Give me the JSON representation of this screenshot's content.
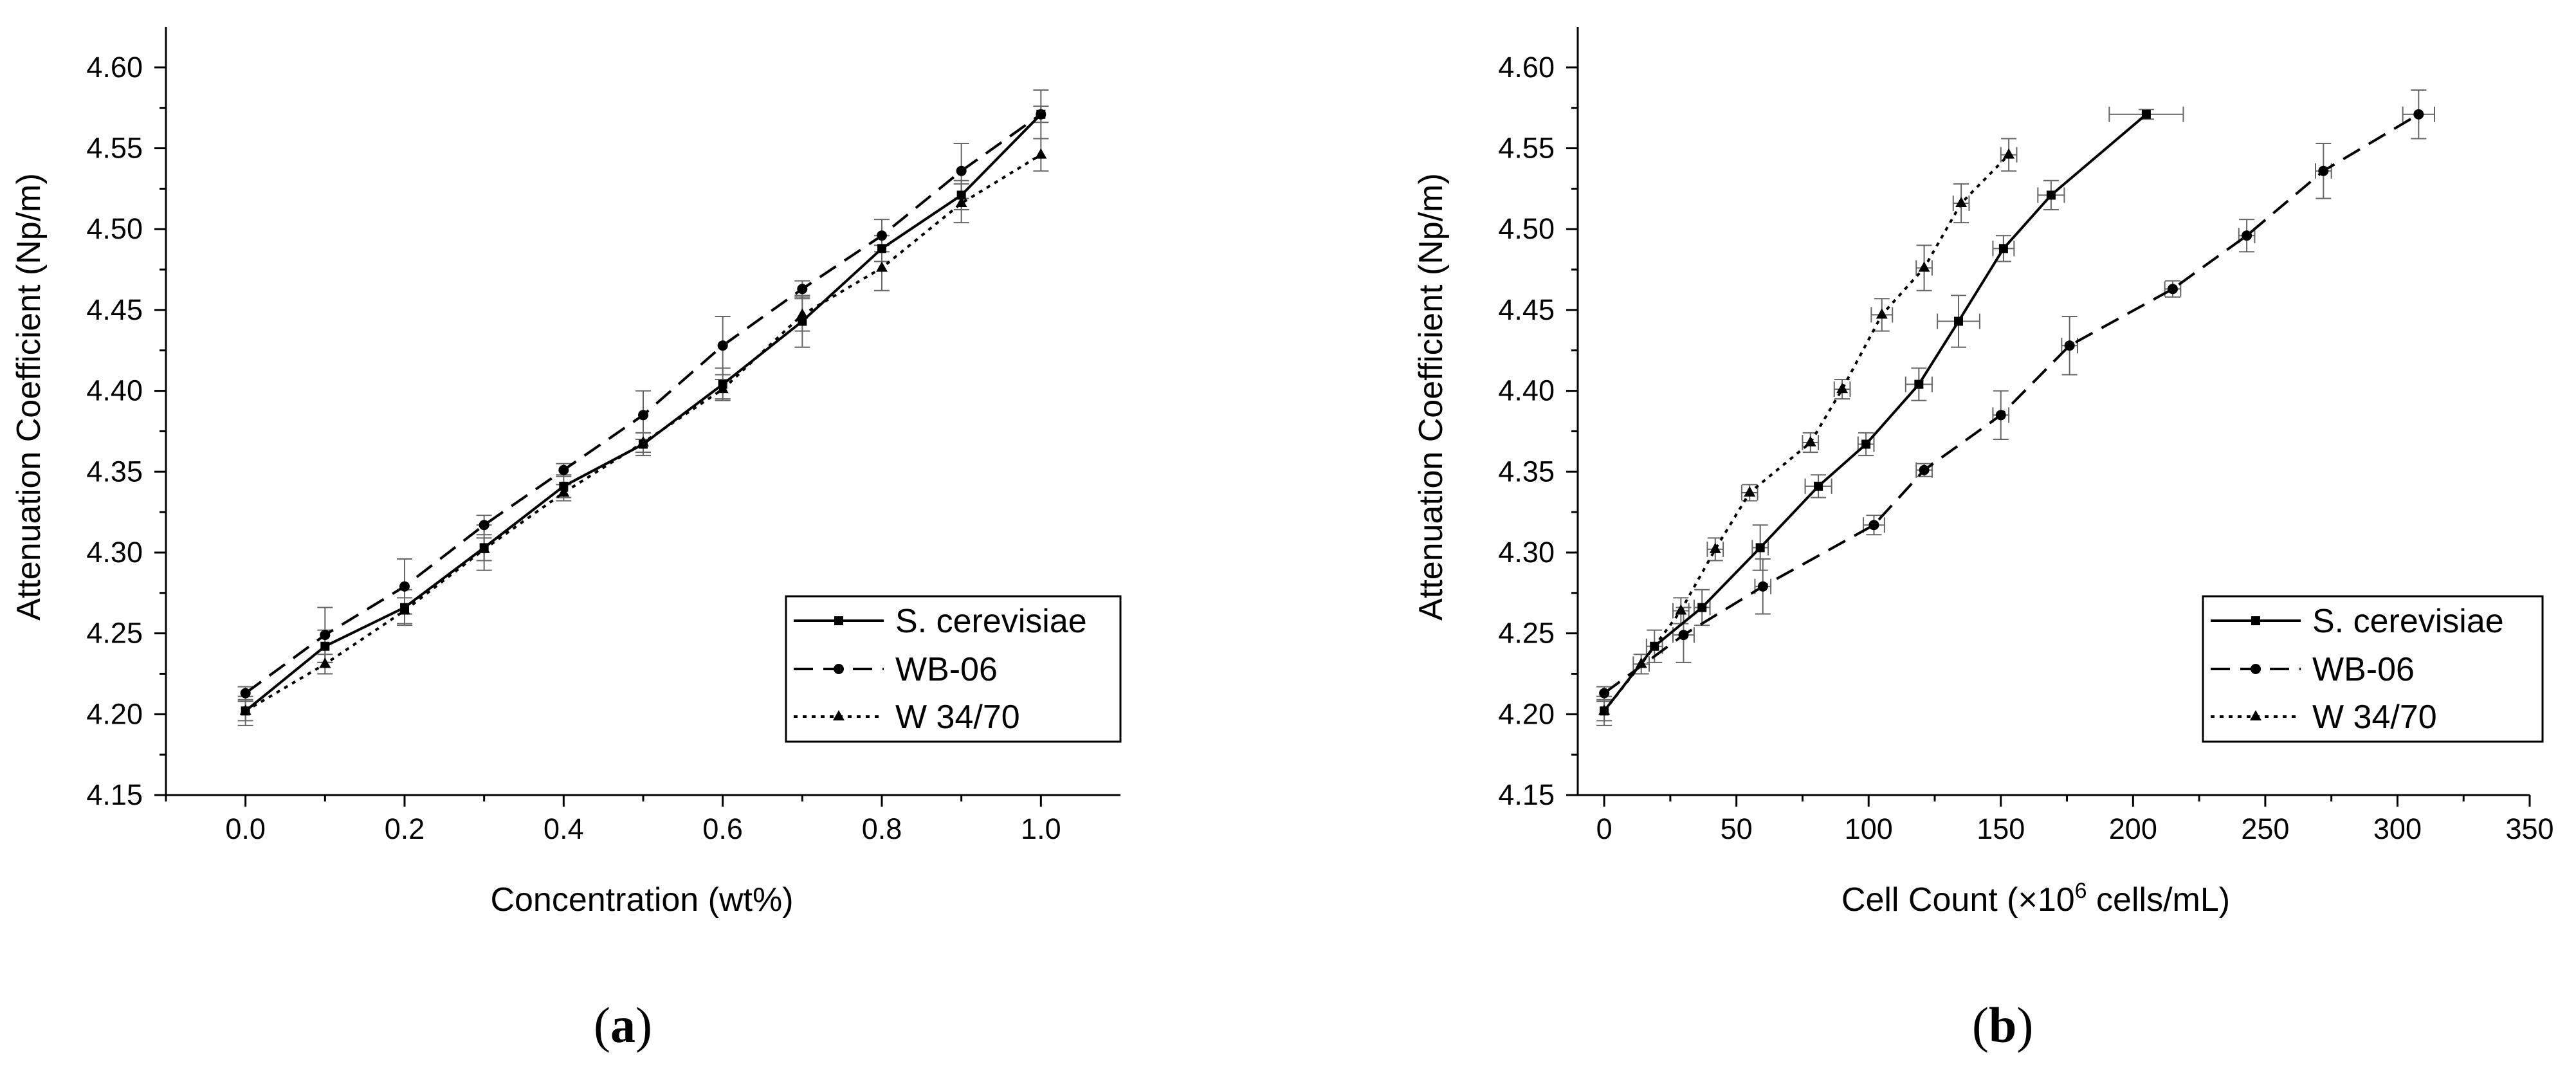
{
  "chart_data": [
    {
      "type": "line",
      "panel": "a",
      "panel_label": {
        "open": "(",
        "letter": "a",
        "close": ")"
      },
      "xlabel": "Concentration (wt%)",
      "ylabel": "Attenuation Coefficient (Np/m)",
      "xlim": [
        -0.1,
        1.1
      ],
      "ylim": [
        4.15,
        4.625
      ],
      "x_ticks": [
        0.0,
        0.2,
        0.4,
        0.6,
        0.8,
        1.0
      ],
      "x_tick_labels": [
        "0.0",
        "0.2",
        "0.4",
        "0.6",
        "0.8",
        "1.0"
      ],
      "y_ticks": [
        4.15,
        4.2,
        4.25,
        4.3,
        4.35,
        4.4,
        4.45,
        4.5,
        4.55,
        4.6
      ],
      "y_tick_labels": [
        "4.15",
        "4.20",
        "4.25",
        "4.30",
        "4.35",
        "4.40",
        "4.45",
        "4.50",
        "4.55",
        "4.60"
      ],
      "legend_position": "lower-right",
      "series": [
        {
          "name": "S. cerevisiae",
          "line_style": "solid",
          "marker": "square",
          "x": [
            0.0,
            0.1,
            0.2,
            0.3,
            0.4,
            0.5,
            0.6,
            0.7,
            0.8,
            0.9,
            1.0
          ],
          "y": [
            4.202,
            4.242,
            4.266,
            4.303,
            4.341,
            4.367,
            4.404,
            4.443,
            4.488,
            4.521,
            4.571
          ],
          "yerr": [
            0.009,
            0.01,
            0.011,
            0.014,
            0.007,
            0.007,
            0.01,
            0.016,
            0.008,
            0.009,
            0.005
          ]
        },
        {
          "name": "WB-06",
          "line_style": "dashed",
          "marker": "circle",
          "x": [
            0.0,
            0.1,
            0.2,
            0.3,
            0.4,
            0.5,
            0.6,
            0.7,
            0.8,
            0.9,
            1.0
          ],
          "y": [
            4.213,
            4.249,
            4.279,
            4.317,
            4.351,
            4.385,
            4.428,
            4.463,
            4.496,
            4.536,
            4.571
          ],
          "yerr": [
            0.004,
            0.017,
            0.017,
            0.006,
            0.004,
            0.015,
            0.018,
            0.005,
            0.01,
            0.017,
            0.015
          ]
        },
        {
          "name": "W 34/70",
          "line_style": "dotted",
          "marker": "triangle",
          "x": [
            0.0,
            0.1,
            0.2,
            0.3,
            0.4,
            0.5,
            0.6,
            0.7,
            0.8,
            0.9,
            1.0
          ],
          "y": [
            4.202,
            4.231,
            4.264,
            4.302,
            4.337,
            4.368,
            4.401,
            4.447,
            4.476,
            4.516,
            4.546
          ],
          "yerr": [
            0.006,
            0.006,
            0.008,
            0.007,
            0.005,
            0.006,
            0.006,
            0.01,
            0.014,
            0.012,
            0.01
          ]
        }
      ]
    },
    {
      "type": "line",
      "panel": "b",
      "panel_label": {
        "open": "(",
        "letter": "b",
        "close": ")"
      },
      "xlabel": "Cell Count (×10⁶ cells/mL)",
      "xlabel_parts": {
        "before": "Cell Count (×10",
        "sup": "6",
        "after": " cells/mL)"
      },
      "ylabel": "Attenuation Coefficient (Np/m)",
      "xlim": [
        -10,
        350
      ],
      "ylim": [
        4.15,
        4.625
      ],
      "x_ticks": [
        0,
        50,
        100,
        150,
        200,
        250,
        300,
        350
      ],
      "x_tick_labels": [
        "0",
        "50",
        "100",
        "150",
        "200",
        "250",
        "300",
        "350"
      ],
      "y_ticks": [
        4.15,
        4.2,
        4.25,
        4.3,
        4.35,
        4.4,
        4.45,
        4.5,
        4.55,
        4.6
      ],
      "y_tick_labels": [
        "4.15",
        "4.20",
        "4.25",
        "4.30",
        "4.35",
        "4.40",
        "4.45",
        "4.50",
        "4.55",
        "4.60"
      ],
      "legend_position": "lower-right",
      "series": [
        {
          "name": "S. cerevisiae",
          "line_style": "solid",
          "marker": "square",
          "x": [
            0,
            19,
            37,
            59,
            81,
            99,
            119,
            134,
            151,
            169,
            205
          ],
          "y": [
            4.202,
            4.242,
            4.266,
            4.303,
            4.341,
            4.367,
            4.404,
            4.443,
            4.488,
            4.521,
            4.571
          ],
          "yerr": [
            0.009,
            0.01,
            0.011,
            0.014,
            0.007,
            0.007,
            0.01,
            0.016,
            0.008,
            0.009,
            0.003
          ],
          "xerr": [
            0,
            3,
            3,
            3,
            5,
            3,
            5,
            8,
            4,
            5,
            14
          ]
        },
        {
          "name": "WB-06",
          "line_style": "dashed",
          "marker": "circle",
          "x": [
            0,
            30,
            60,
            102,
            121,
            150,
            176,
            215,
            243,
            272,
            308
          ],
          "y": [
            4.213,
            4.249,
            4.279,
            4.317,
            4.351,
            4.385,
            4.428,
            4.463,
            4.496,
            4.536,
            4.571
          ],
          "yerr": [
            0.004,
            0.017,
            0.017,
            0.006,
            0.004,
            0.015,
            0.018,
            0.005,
            0.01,
            0.017,
            0.015
          ],
          "xerr": [
            0,
            4,
            3,
            4,
            3,
            3,
            3,
            3,
            3,
            3,
            6
          ]
        },
        {
          "name": "W 34/70",
          "line_style": "dotted",
          "marker": "triangle",
          "x": [
            0,
            14,
            29,
            42,
            55,
            78,
            90,
            105,
            121,
            135,
            153
          ],
          "y": [
            4.202,
            4.231,
            4.264,
            4.302,
            4.337,
            4.368,
            4.401,
            4.447,
            4.476,
            4.516,
            4.546
          ],
          "yerr": [
            0.006,
            0.006,
            0.008,
            0.007,
            0.005,
            0.006,
            0.006,
            0.01,
            0.014,
            0.012,
            0.01
          ],
          "xerr": [
            0,
            3,
            3,
            3,
            3,
            3,
            3,
            4,
            3,
            3,
            3
          ]
        }
      ]
    }
  ]
}
